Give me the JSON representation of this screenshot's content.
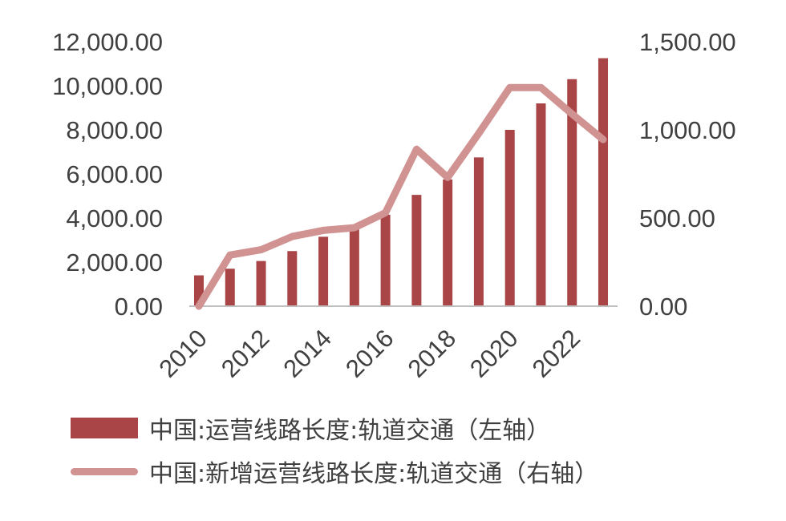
{
  "chart_data": {
    "type": "bar+line",
    "categories": [
      "2010",
      "2011",
      "2012",
      "2013",
      "2014",
      "2015",
      "2016",
      "2017",
      "2018",
      "2019",
      "2020",
      "2021",
      "2022",
      "2023"
    ],
    "x_tick_labels": [
      "2010",
      "2012",
      "2014",
      "2016",
      "2018",
      "2020",
      "2022"
    ],
    "series": [
      {
        "name": "中国:运营线路长度:轨道交通（左轴）",
        "type": "bar",
        "axis": "left",
        "color": "#a94546",
        "values": [
          1400,
          1700,
          2050,
          2500,
          3150,
          3600,
          4150,
          5050,
          5750,
          6750,
          8000,
          9200,
          10300,
          11250
        ]
      },
      {
        "name": "中国:新增运营线路长度:轨道交通（右轴）",
        "type": "line",
        "axis": "right",
        "color": "#d19292",
        "values": [
          0,
          290,
          320,
          395,
          430,
          445,
          530,
          890,
          730,
          980,
          1240,
          1240,
          1090,
          945
        ]
      }
    ],
    "y_left": {
      "min": 0,
      "max": 12000,
      "ticks": [
        "0.00",
        "2,000.00",
        "4,000.00",
        "6,000.00",
        "8,000.00",
        "10,000.00",
        "12,000.00"
      ]
    },
    "y_right": {
      "min": 0,
      "max": 1500,
      "ticks": [
        "0.00",
        "500.00",
        "1,000.00",
        "1,500.00"
      ]
    },
    "grid": false,
    "legend_position": "bottom"
  }
}
